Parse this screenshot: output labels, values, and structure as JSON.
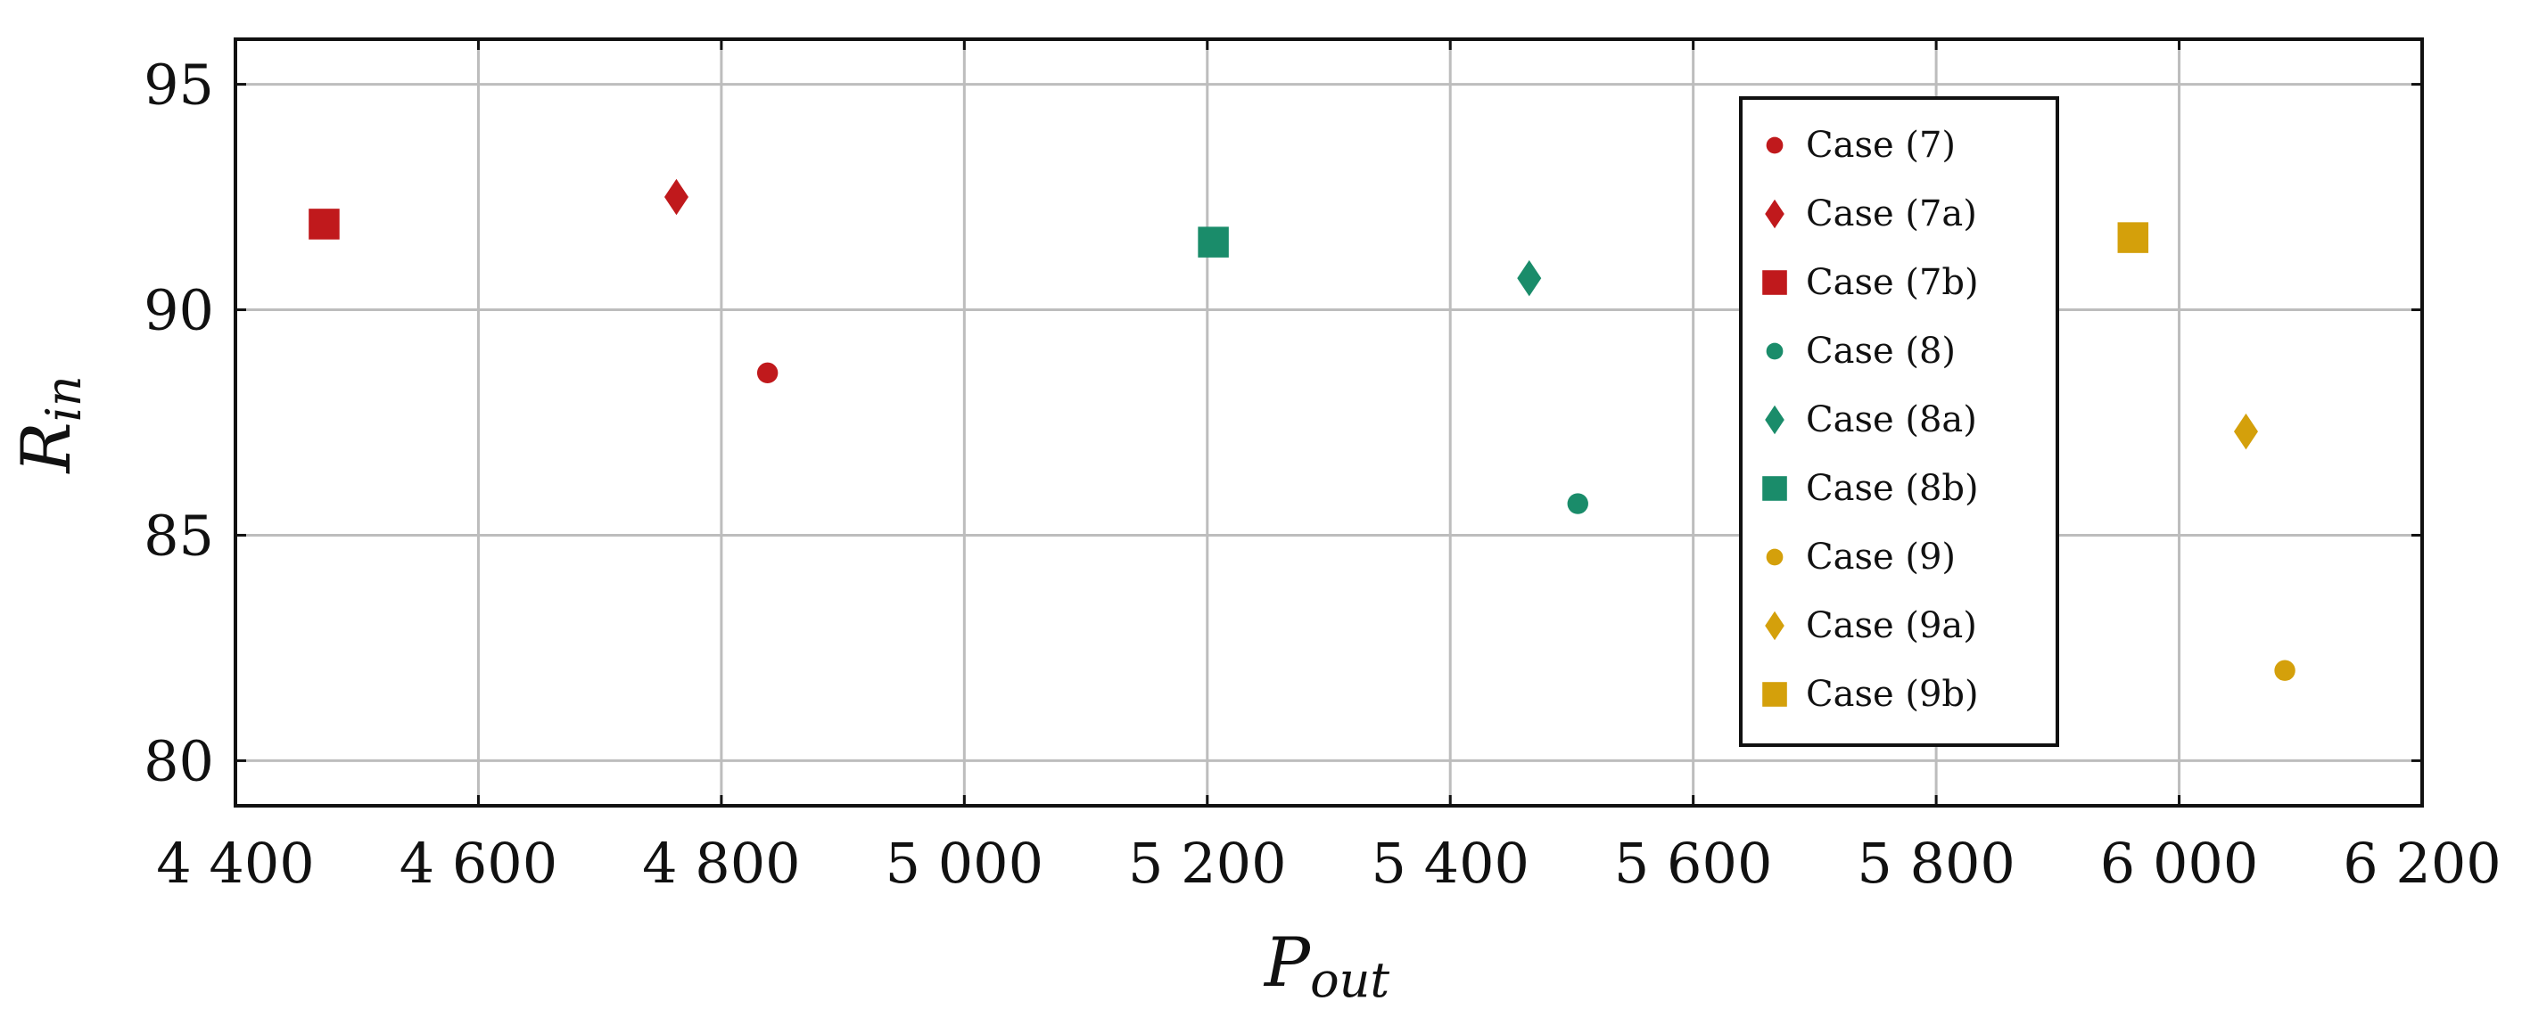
{
  "chart_data": {
    "type": "scatter",
    "xlabel": {
      "main": "P",
      "sub": "out"
    },
    "ylabel": {
      "main": "R",
      "sub": "in"
    },
    "xlim": [
      4400,
      6200
    ],
    "ylim": [
      79,
      96
    ],
    "xticks": [
      4400,
      4600,
      4800,
      5000,
      5200,
      5400,
      5600,
      5800,
      6000,
      6200
    ],
    "xtick_labels": [
      "4 400",
      "4 600",
      "4 800",
      "5 000",
      "5 200",
      "5 400",
      "5 600",
      "5 800",
      "6 000",
      "6 200"
    ],
    "yticks": [
      80,
      85,
      90,
      95
    ],
    "ytick_labels": [
      "80",
      "85",
      "90",
      "95"
    ],
    "grid": true,
    "legend_position": "top-right",
    "series": [
      {
        "name": "Case (7)",
        "marker": "circle",
        "color": "#C0191C",
        "x": [
          4838
        ],
        "y": [
          88.6
        ]
      },
      {
        "name": "Case (7a)",
        "marker": "diamond",
        "color": "#C0191C",
        "x": [
          4763
        ],
        "y": [
          92.5
        ]
      },
      {
        "name": "Case (7b)",
        "marker": "square",
        "color": "#C0191C",
        "x": [
          4473
        ],
        "y": [
          91.9
        ]
      },
      {
        "name": "Case (8)",
        "marker": "circle",
        "color": "#1A8C6A",
        "x": [
          5505
        ],
        "y": [
          85.7
        ]
      },
      {
        "name": "Case (8a)",
        "marker": "diamond",
        "color": "#1A8C6A",
        "x": [
          5465
        ],
        "y": [
          90.7
        ]
      },
      {
        "name": "Case (8b)",
        "marker": "square",
        "color": "#1A8C6A",
        "x": [
          5205
        ],
        "y": [
          91.5
        ]
      },
      {
        "name": "Case (9)",
        "marker": "circle",
        "color": "#D4A00B",
        "x": [
          6087
        ],
        "y": [
          82.0
        ]
      },
      {
        "name": "Case (9a)",
        "marker": "diamond",
        "color": "#D4A00B",
        "x": [
          6055
        ],
        "y": [
          87.3
        ]
      },
      {
        "name": "Case (9b)",
        "marker": "square",
        "color": "#D4A00B",
        "x": [
          5962
        ],
        "y": [
          91.6
        ]
      }
    ]
  }
}
